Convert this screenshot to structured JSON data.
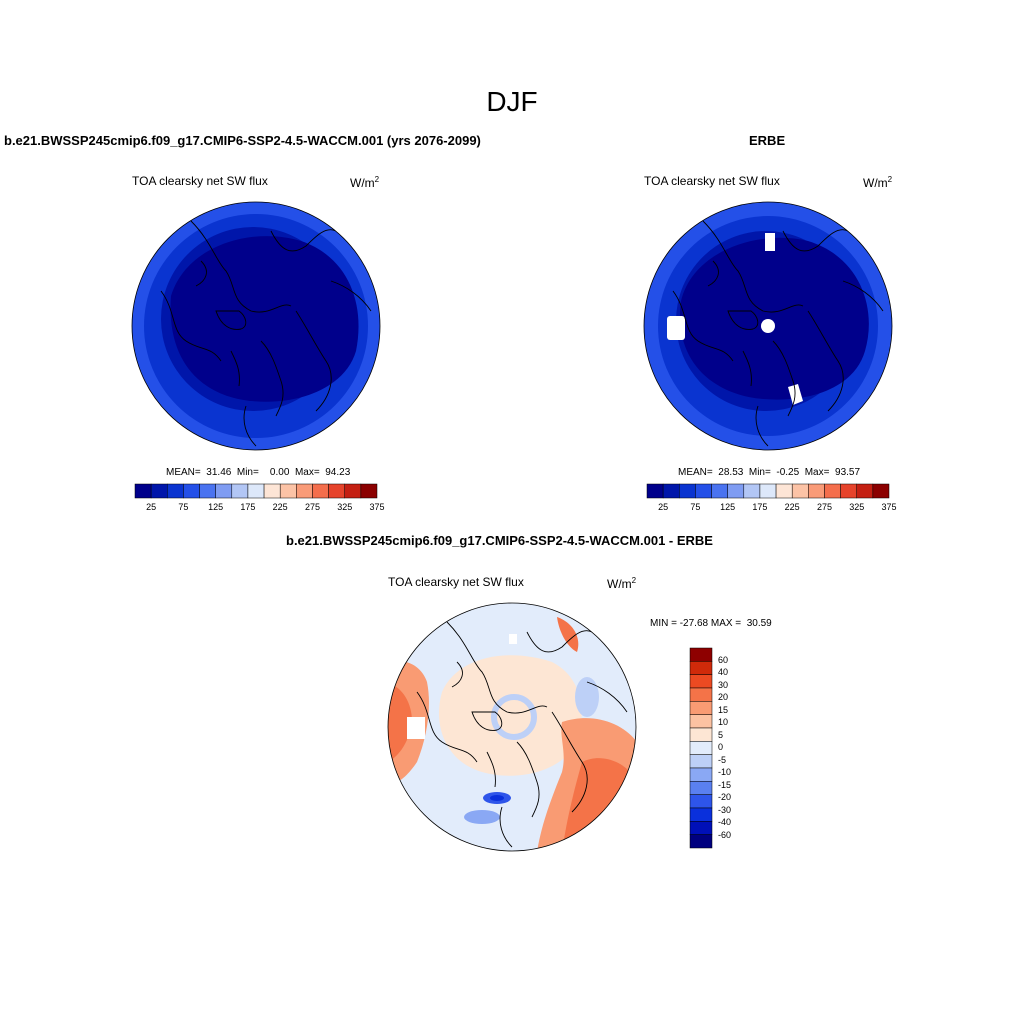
{
  "title": "DJF",
  "panel_left": {
    "title": "b.e21.BWSSP245cmip6.f09_g17.CMIP6-SSP2-4.5-WACCM.001 (yrs 2076-2099)",
    "variable": "TOA clearsky net SW flux",
    "units_base": "W/m",
    "units_exp": "2",
    "stats": "MEAN=  31.46  Min=    0.00  Max=  94.23"
  },
  "panel_right": {
    "title": "ERBE",
    "variable": "TOA clearsky net SW flux",
    "units_base": "W/m",
    "units_exp": "2",
    "stats": "MEAN=  28.53  Min=  -0.25  Max=  93.57"
  },
  "panel_diff": {
    "title": "b.e21.BWSSP245cmip6.f09_g17.CMIP6-SSP2-4.5-WACCM.001 - ERBE",
    "variable": "TOA clearsky net SW flux",
    "units_base": "W/m",
    "units_exp": "2",
    "stats": "MIN = -27.68 MAX =  30.59"
  },
  "colorbar_main": {
    "colors": [
      "#00008B",
      "#0016AA",
      "#0A34D0",
      "#2450E8",
      "#4A73F0",
      "#7F9CF2",
      "#B2C6F5",
      "#DDE8FA",
      "#FDE5D6",
      "#FCC3A6",
      "#F99B78",
      "#F46E4C",
      "#E6432B",
      "#C41F12",
      "#8B0000"
    ],
    "labels": [
      "25",
      "75",
      "125",
      "175",
      "225",
      "275",
      "325",
      "375"
    ]
  },
  "colorbar_diff": {
    "colors": [
      "#00007F",
      "#0010B8",
      "#0A30DC",
      "#2E55EA",
      "#5A80F0",
      "#8AA8F4",
      "#BDD0F7",
      "#E2ECFB",
      "#FDE6D4",
      "#FCC2A2",
      "#F99B73",
      "#F47348",
      "#EC4A22",
      "#D02A0A",
      "#8E0000"
    ],
    "labels": [
      "-60",
      "-40",
      "-30",
      "-20",
      "-15",
      "-10",
      "-5",
      "0",
      "5",
      "10",
      "15",
      "20",
      "30",
      "40",
      "60"
    ]
  },
  "chart_data": [
    {
      "type": "heatmap",
      "title": "b.e21.BWSSP245cmip6.f09_g17.CMIP6-SSP2-4.5-WACCM.001 (yrs 2076-2099)",
      "projection": "north polar stereographic",
      "variable": "TOA clearsky net SW flux",
      "units": "W/m2",
      "mean": 31.46,
      "min": 0.0,
      "max": 94.23,
      "levels": [
        25,
        50,
        75,
        100,
        125,
        150,
        175,
        200,
        225,
        250,
        275,
        300,
        325,
        350,
        375
      ]
    },
    {
      "type": "heatmap",
      "title": "ERBE",
      "projection": "north polar stereographic",
      "variable": "TOA clearsky net SW flux",
      "units": "W/m2",
      "mean": 28.53,
      "min": -0.25,
      "max": 93.57,
      "levels": [
        25,
        50,
        75,
        100,
        125,
        150,
        175,
        200,
        225,
        250,
        275,
        300,
        325,
        350,
        375
      ]
    },
    {
      "type": "heatmap",
      "title": "b.e21.BWSSP245cmip6.f09_g17.CMIP6-SSP2-4.5-WACCM.001 - ERBE",
      "projection": "north polar stereographic",
      "variable": "TOA clearsky net SW flux",
      "units": "W/m2",
      "min": -27.68,
      "max": 30.59,
      "levels": [
        -60,
        -40,
        -30,
        -20,
        -15,
        -10,
        -5,
        0,
        5,
        10,
        15,
        20,
        30,
        40,
        60
      ]
    }
  ]
}
